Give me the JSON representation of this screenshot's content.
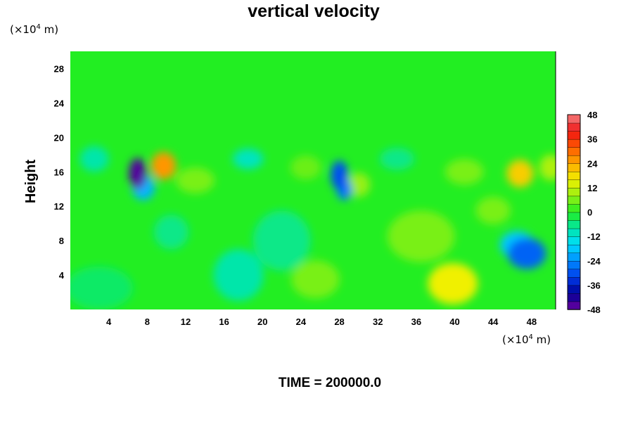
{
  "chart_data": {
    "type": "heatmap",
    "title": "vertical velocity",
    "ylabel": "Height",
    "xlabel": "",
    "x_unit": {
      "prefix": "(×10",
      "exp": "4",
      "suffix": " m)"
    },
    "y_unit": {
      "prefix": "(×10",
      "exp": "4",
      "suffix": " m)"
    },
    "xlim": [
      0,
      50.5
    ],
    "ylim": [
      0,
      30
    ],
    "x_ticks": [
      4,
      8,
      12,
      16,
      20,
      24,
      28,
      32,
      36,
      40,
      44,
      48
    ],
    "y_ticks": [
      4,
      8,
      12,
      16,
      20,
      24,
      28
    ],
    "colorbar": {
      "min": -48,
      "max": 48,
      "step": 4,
      "ticks": [
        48,
        36,
        24,
        12,
        0,
        -12,
        -24,
        -36,
        -48
      ]
    },
    "background_value": 0,
    "features": [
      {
        "x": 7.0,
        "y": 15.8,
        "value": -46,
        "rx": 0.9,
        "ry": 1.8
      },
      {
        "x": 7.6,
        "y": 14.2,
        "value": -20,
        "rx": 1.2,
        "ry": 1.5
      },
      {
        "x": 9.7,
        "y": 16.7,
        "value": 26,
        "rx": 1.3,
        "ry": 1.6
      },
      {
        "x": 28.0,
        "y": 15.6,
        "value": -30,
        "rx": 0.9,
        "ry": 1.7
      },
      {
        "x": 28.5,
        "y": 13.9,
        "value": -26,
        "rx": 0.8,
        "ry": 1.2
      },
      {
        "x": 30.0,
        "y": 14.5,
        "value": 8,
        "rx": 1.2,
        "ry": 1.4
      },
      {
        "x": 46.8,
        "y": 15.8,
        "value": 20,
        "rx": 1.4,
        "ry": 1.6
      },
      {
        "x": 47.5,
        "y": 6.5,
        "value": -28,
        "rx": 2.0,
        "ry": 1.8
      },
      {
        "x": 46.5,
        "y": 7.5,
        "value": -18,
        "rx": 1.8,
        "ry": 1.6
      },
      {
        "x": 39.8,
        "y": 3.0,
        "value": 16,
        "rx": 2.6,
        "ry": 2.4
      },
      {
        "x": 36.5,
        "y": 8.5,
        "value": 6,
        "rx": 3.5,
        "ry": 3.0
      },
      {
        "x": 17.5,
        "y": 4.0,
        "value": -8,
        "rx": 2.6,
        "ry": 3.0
      },
      {
        "x": 22.0,
        "y": 8.0,
        "value": -6,
        "rx": 3.0,
        "ry": 3.5
      },
      {
        "x": 3.0,
        "y": 2.5,
        "value": -4,
        "rx": 3.5,
        "ry": 2.5
      },
      {
        "x": 13.0,
        "y": 15.0,
        "value": 6,
        "rx": 2.0,
        "ry": 1.5
      },
      {
        "x": 18.5,
        "y": 17.5,
        "value": -10,
        "rx": 1.6,
        "ry": 1.2
      },
      {
        "x": 24.5,
        "y": 16.5,
        "value": 5,
        "rx": 1.6,
        "ry": 1.4
      },
      {
        "x": 34.0,
        "y": 17.5,
        "value": -6,
        "rx": 1.8,
        "ry": 1.3
      },
      {
        "x": 41.0,
        "y": 16.0,
        "value": 6,
        "rx": 2.0,
        "ry": 1.5
      },
      {
        "x": 2.5,
        "y": 17.5,
        "value": -8,
        "rx": 1.5,
        "ry": 1.5
      },
      {
        "x": 50.0,
        "y": 16.5,
        "value": 10,
        "rx": 1.2,
        "ry": 1.5
      },
      {
        "x": 25.5,
        "y": 3.5,
        "value": 6,
        "rx": 2.5,
        "ry": 2.2
      },
      {
        "x": 44.0,
        "y": 11.5,
        "value": 6,
        "rx": 1.8,
        "ry": 1.6
      },
      {
        "x": 10.5,
        "y": 9.0,
        "value": -6,
        "rx": 1.8,
        "ry": 2.0
      }
    ],
    "footer_label": "TIME = 200000.0"
  }
}
